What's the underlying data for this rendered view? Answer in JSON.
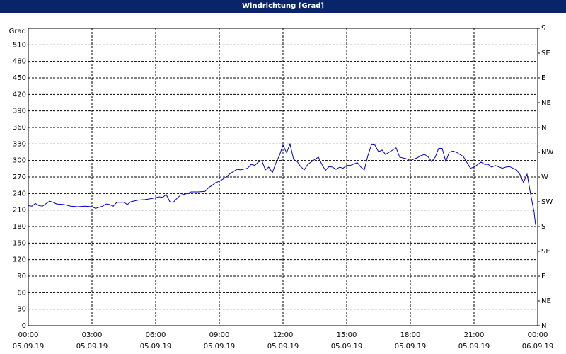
{
  "chart_data": {
    "type": "line",
    "title": "Windrichtung [Grad]",
    "y_label": "Grad",
    "x": [
      0,
      0.17,
      0.33,
      0.5,
      0.67,
      1,
      1.17,
      1.33,
      1.67,
      2,
      2.33,
      2.67,
      3,
      3.17,
      3.5,
      3.67,
      3.83,
      4,
      4.17,
      4.5,
      4.67,
      4.83,
      5.17,
      5.5,
      5.83,
      6.17,
      6.33,
      6.5,
      6.67,
      6.83,
      7,
      7.17,
      7.5,
      7.67,
      8,
      8.33,
      8.5,
      8.67,
      8.83,
      9,
      9.33,
      9.5,
      9.67,
      9.83,
      10,
      10.33,
      10.5,
      10.67,
      10.83,
      11,
      11.17,
      11.33,
      11.5,
      11.67,
      11.83,
      12,
      12.17,
      12.33,
      12.5,
      12.67,
      12.83,
      13,
      13.17,
      13.5,
      13.67,
      13.83,
      14,
      14.17,
      14.33,
      14.5,
      14.67,
      14.83,
      15,
      15.17,
      15.5,
      15.67,
      15.83,
      16,
      16.17,
      16.33,
      16.5,
      16.67,
      16.83,
      17.17,
      17.33,
      17.5,
      17.83,
      18,
      18.33,
      18.5,
      18.67,
      18.83,
      19,
      19.17,
      19.33,
      19.5,
      19.67,
      19.83,
      20,
      20.17,
      20.5,
      20.67,
      20.83,
      21,
      21.33,
      21.5,
      21.67,
      21.83,
      22,
      22.33,
      22.5,
      22.67,
      23,
      23.17,
      23.33,
      23.5,
      23.67,
      23.83,
      23.9
    ],
    "series": [
      {
        "color": "#0000cc",
        "values": [
          218,
          217,
          222,
          218,
          217,
          226,
          224,
          221,
          220,
          217,
          216,
          217,
          216,
          213,
          217,
          221,
          220,
          217,
          224,
          224,
          220,
          225,
          228,
          229,
          231,
          234,
          233,
          238,
          225,
          224,
          231,
          237,
          240,
          243,
          243,
          244,
          251,
          255,
          260,
          262,
          270,
          276,
          280,
          284,
          283,
          286,
          293,
          291,
          297,
          300,
          283,
          288,
          278,
          296,
          309,
          328,
          314,
          330,
          302,
          298,
          289,
          283,
          293,
          302,
          306,
          293,
          282,
          289,
          288,
          284,
          288,
          286,
          291,
          291,
          296,
          288,
          283,
          309,
          329,
          328,
          316,
          319,
          311,
          319,
          323,
          306,
          303,
          300,
          305,
          309,
          311,
          307,
          298,
          306,
          322,
          322,
          298,
          315,
          317,
          315,
          307,
          296,
          286,
          288,
          297,
          293,
          293,
          288,
          291,
          286,
          288,
          289,
          283,
          274,
          260,
          275,
          238,
          206,
          183
        ]
      }
    ],
    "xlim": [
      0,
      24
    ],
    "xticks": [
      {
        "value": 0,
        "label": "00:00\n05.09.19"
      },
      {
        "value": 3,
        "label": "03:00\n05.09.19"
      },
      {
        "value": 6,
        "label": "06:00\n05.09.19"
      },
      {
        "value": 9,
        "label": "09:00\n05.09.19"
      },
      {
        "value": 12,
        "label": "12:00\n05.09.19"
      },
      {
        "value": 15,
        "label": "15:00\n05.09.19"
      },
      {
        "value": 18,
        "label": "18:00\n05.09.19"
      },
      {
        "value": 21,
        "label": "21:00\n05.09.19"
      },
      {
        "value": 24,
        "label": "00:00\n06.09.19"
      }
    ],
    "ylim": [
      0,
      540
    ],
    "yticks": [
      0,
      30,
      60,
      90,
      120,
      150,
      180,
      210,
      240,
      270,
      300,
      330,
      360,
      390,
      420,
      450,
      480,
      510
    ],
    "y2lim": [
      0,
      540
    ],
    "y2ticks": [
      {
        "value": 0,
        "label": "N"
      },
      {
        "value": 45,
        "label": "NE"
      },
      {
        "value": 90,
        "label": "E"
      },
      {
        "value": 135,
        "label": "SE"
      },
      {
        "value": 180,
        "label": "S"
      },
      {
        "value": 225,
        "label": "SW"
      },
      {
        "value": 270,
        "label": "W"
      },
      {
        "value": 315,
        "label": "NW"
      },
      {
        "value": 360,
        "label": "N"
      },
      {
        "value": 405,
        "label": "NE"
      },
      {
        "value": 450,
        "label": "E"
      },
      {
        "value": 495,
        "label": "SE"
      },
      {
        "value": 540,
        "label": "S"
      }
    ],
    "grid": true
  }
}
